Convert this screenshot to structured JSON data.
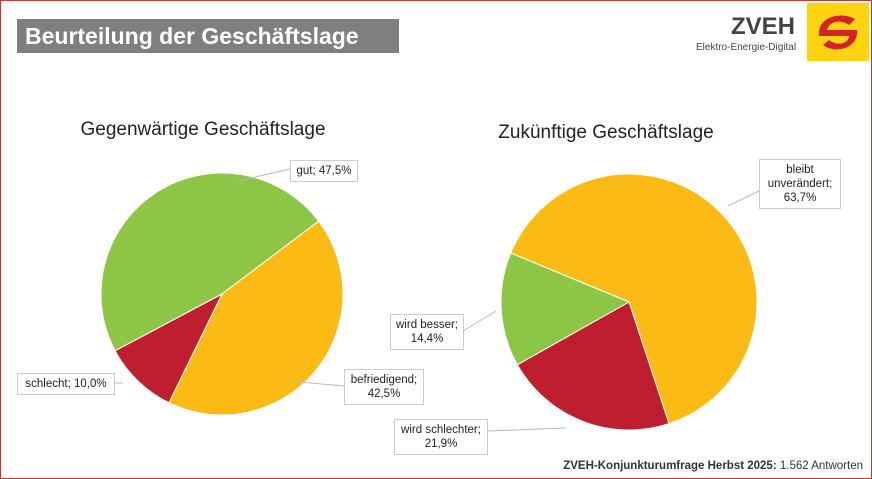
{
  "header": {
    "title": "Beurteilung der Geschäftslage"
  },
  "logo": {
    "name": "ZVEH",
    "tagline": "Elektro-Energie-Digital"
  },
  "chart_data": [
    {
      "type": "pie",
      "title": "Gegenwärtige Geschäftslage",
      "values": [
        47.5,
        42.5,
        10
      ],
      "value_labels": [
        "gut; 47,5%",
        "befriedigend; 42,5%",
        "schlecht; 10,0%"
      ],
      "colors": [
        "#8dc644",
        "#fbbb14",
        "#be1e2d"
      ]
    },
    {
      "type": "pie",
      "title": "Zukünftige Geschäftslage",
      "values": [
        63.7,
        21.9,
        14.4
      ],
      "value_labels": [
        "bleibt unverändert; 63,7%",
        "wird schlechter; 21,9%",
        "wird besser; 14,4%"
      ],
      "colors": [
        "#fbbb14",
        "#be1e2d",
        "#8dc644"
      ]
    }
  ],
  "footer": {
    "source": "ZVEH-Konjunkturumfrage Herbst 2025:",
    "responses": "1.562 Antworten"
  }
}
